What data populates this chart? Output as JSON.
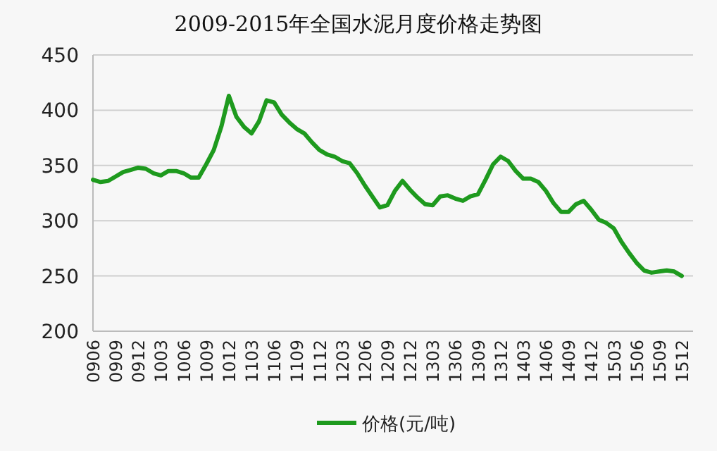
{
  "chart_data": {
    "type": "line",
    "title": "2009-2015年全国水泥月度价格走势图",
    "categories": [
      "0906",
      null,
      null,
      "0909",
      null,
      null,
      "0912",
      null,
      null,
      "1003",
      null,
      null,
      "1006",
      null,
      null,
      "1009",
      null,
      null,
      "1012",
      null,
      null,
      "1103",
      null,
      null,
      "1106",
      null,
      null,
      "1109",
      null,
      null,
      "1112",
      null,
      null,
      "1203",
      null,
      null,
      "1206",
      null,
      null,
      "1209",
      null,
      null,
      "1212",
      null,
      null,
      "1303",
      null,
      null,
      "1306",
      null,
      null,
      "1309",
      null,
      null,
      "1312",
      null,
      null,
      "1403",
      null,
      null,
      "1406",
      null,
      null,
      "1409",
      null,
      null,
      "1412",
      null,
      null,
      "1503",
      null,
      null,
      "1506",
      null,
      null,
      "1509",
      null,
      null,
      "1512"
    ],
    "series": [
      {
        "name": "价格(元/吨)",
        "color": "#1e9a1e",
        "values": [
          337,
          335,
          336,
          340,
          344,
          346,
          348,
          347,
          343,
          341,
          345,
          345,
          343,
          339,
          339,
          351,
          364,
          385,
          413,
          394,
          385,
          379,
          390,
          409,
          407,
          396,
          389,
          383,
          379,
          371,
          364,
          360,
          358,
          354,
          352,
          343,
          332,
          322,
          312,
          314,
          327,
          336,
          328,
          321,
          315,
          314,
          322,
          323,
          320,
          318,
          322,
          324,
          337,
          351,
          358,
          354,
          345,
          338,
          338,
          335,
          327,
          316,
          308,
          308,
          315,
          318,
          310,
          301,
          298,
          293,
          281,
          271,
          262,
          255,
          253,
          254,
          255,
          254,
          250
        ]
      }
    ],
    "ylim": [
      200,
      450
    ],
    "yticks": [
      200,
      250,
      300,
      350,
      400,
      450
    ],
    "grid": "y",
    "legend": "bottom",
    "marker": "none",
    "line_style": "solid"
  }
}
